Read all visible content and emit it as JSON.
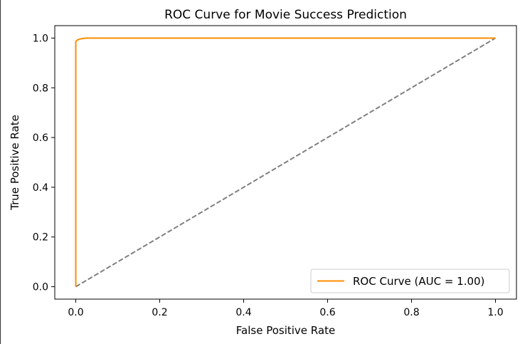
{
  "chart_data": {
    "type": "line",
    "title": "ROC Curve for Movie Success Prediction",
    "xlabel": "False Positive Rate",
    "ylabel": "True Positive Rate",
    "xlim": [
      -0.05,
      1.05
    ],
    "ylim": [
      -0.05,
      1.05
    ],
    "xticks": [
      0.0,
      0.2,
      0.4,
      0.6,
      0.8,
      1.0
    ],
    "xtick_labels": [
      "0.0",
      "0.2",
      "0.4",
      "0.6",
      "0.8",
      "1.0"
    ],
    "yticks": [
      0.0,
      0.2,
      0.4,
      0.6,
      0.8,
      1.0
    ],
    "ytick_labels": [
      "0.0",
      "0.2",
      "0.4",
      "0.6",
      "0.8",
      "1.0"
    ],
    "grid": false,
    "legend_position": "lower-right",
    "series": [
      {
        "name": "ROC Curve (AUC = 1.00)",
        "color": "#ff8c00",
        "style": "solid",
        "x": [
          0.0,
          0.0,
          0.002,
          0.005,
          0.008,
          0.012,
          0.016,
          0.02,
          0.025,
          0.03,
          1.0
        ],
        "y": [
          0.0,
          0.985,
          0.99,
          0.993,
          0.995,
          0.997,
          0.998,
          0.999,
          1.0,
          1.0,
          1.0
        ]
      },
      {
        "color": "#808080",
        "style": "dashed",
        "x": [
          0.0,
          1.0
        ],
        "y": [
          0.0,
          1.0
        ]
      }
    ]
  }
}
